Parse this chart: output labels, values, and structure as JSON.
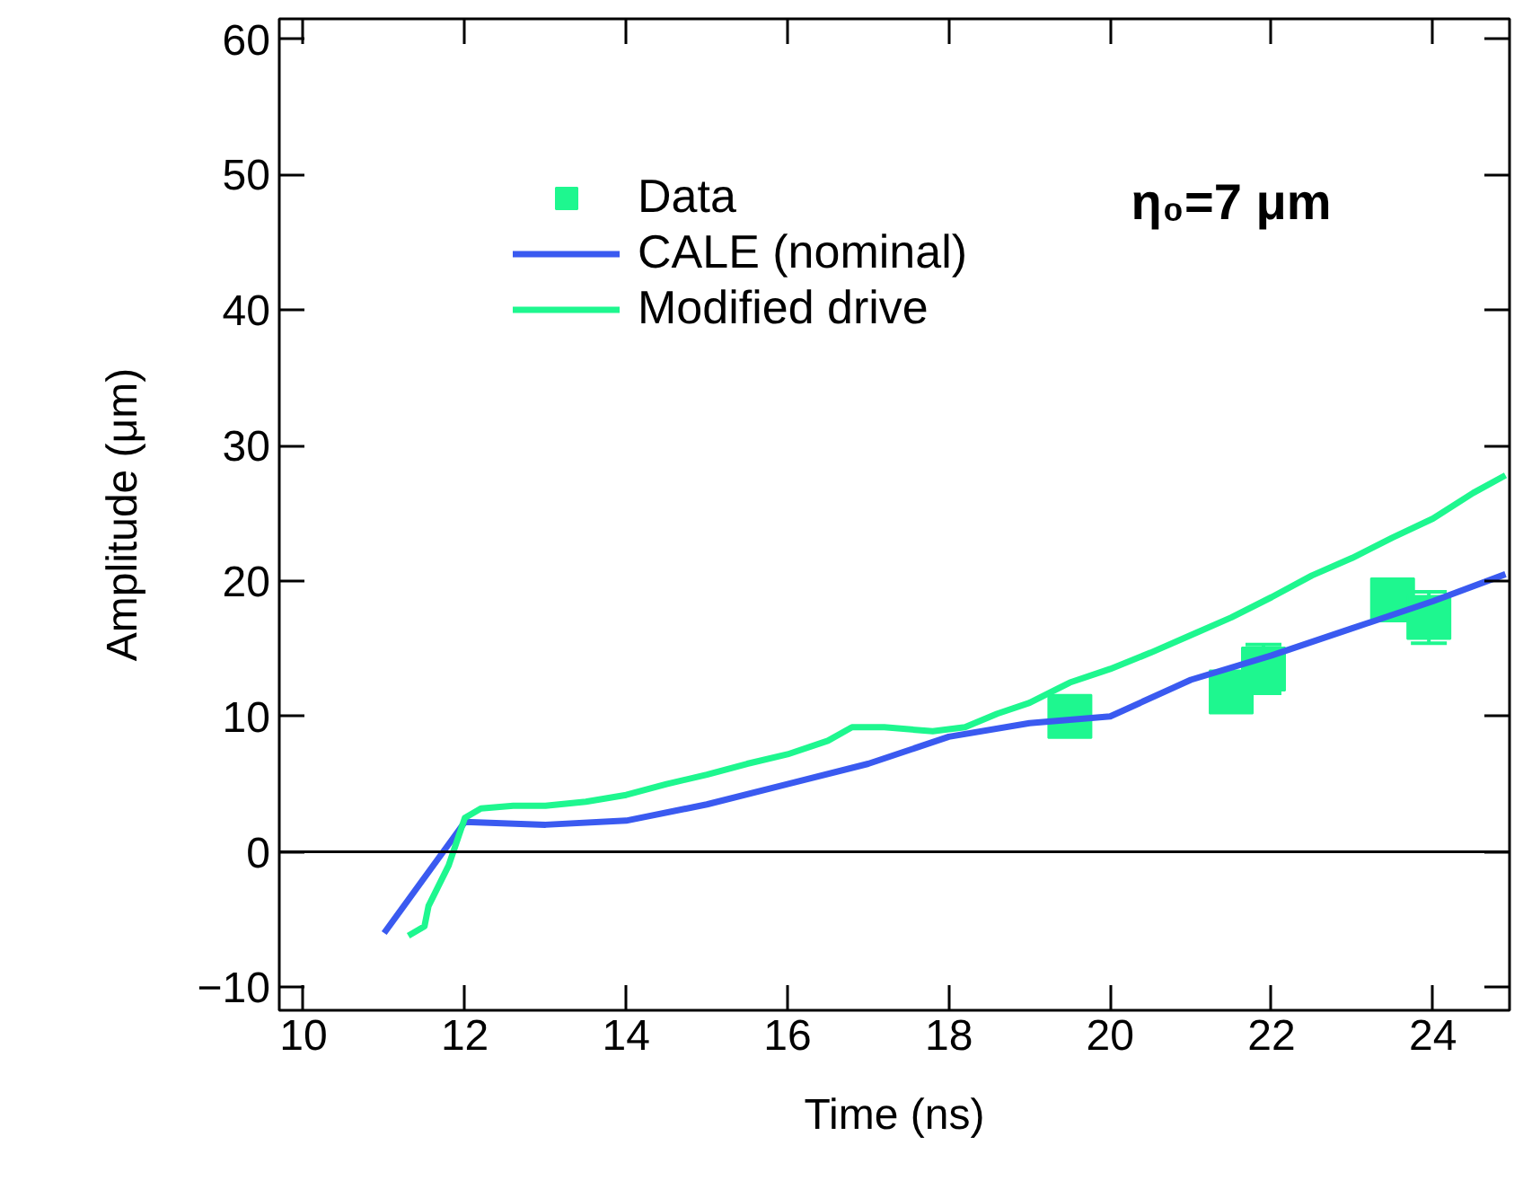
{
  "chart_data": {
    "type": "line",
    "xlabel": "Time (ns)",
    "ylabel": "Amplitude (μm)",
    "xlim": [
      9.7,
      24.95
    ],
    "ylim": [
      -11.7,
      61.5
    ],
    "xticks": [
      10,
      12,
      14,
      16,
      18,
      20,
      22,
      24
    ],
    "yticks": [
      -10,
      0,
      10,
      20,
      30,
      40,
      50,
      60
    ],
    "grid": false,
    "legend": "top left",
    "annotations": [
      "η₀=7 μm"
    ],
    "ref_lines": [
      {
        "axis": "y",
        "value": 0,
        "color": "#000000"
      }
    ],
    "series": [
      {
        "name": "Data",
        "type": "scatter",
        "marker": "square",
        "color": "#1ef78f",
        "x": [
          19.5,
          21.5,
          21.9,
          23.5,
          23.95
        ],
        "values": [
          10,
          11.8,
          13.5,
          18.6,
          17.3
        ],
        "errors": [
          null,
          null,
          1.8,
          null,
          1.9
        ]
      },
      {
        "name": "CALE (nominal)",
        "color": "#3a5af0",
        "x": [
          11,
          12,
          13,
          14,
          15,
          16,
          17,
          18,
          19,
          20,
          21,
          22,
          23,
          24,
          24.9
        ],
        "values": [
          -6,
          2.2,
          2,
          2.3,
          3.5,
          5,
          6.5,
          8.5,
          9.5,
          10,
          12.7,
          14.5,
          16.5,
          18.5,
          20.5
        ]
      },
      {
        "name": "Modified drive",
        "color": "#1ef78f",
        "x": [
          11.3,
          11.5,
          11.55,
          11.8,
          12,
          12.2,
          12.6,
          13,
          13.5,
          14,
          14.5,
          15,
          15.5,
          16,
          16.5,
          16.8,
          17.2,
          17.8,
          18.2,
          18.6,
          19,
          19.5,
          20,
          20.5,
          21,
          21.5,
          22,
          22.5,
          23,
          23.5,
          24,
          24.5,
          24.9
        ],
        "values": [
          -6.2,
          -5.5,
          -4,
          -1,
          2.5,
          3.2,
          3.4,
          3.4,
          3.7,
          4.2,
          5,
          5.7,
          6.5,
          7.2,
          8.2,
          9.2,
          9.2,
          8.9,
          9.2,
          10.2,
          11,
          12.5,
          13.5,
          14.7,
          16,
          17.3,
          18.8,
          20.4,
          21.7,
          23.2,
          24.6,
          26.5,
          27.8
        ]
      }
    ]
  }
}
